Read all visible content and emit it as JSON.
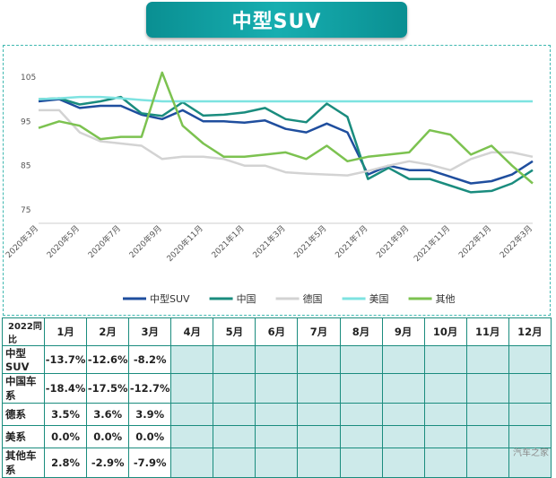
{
  "page": {
    "title": "中型SUV",
    "watermark": "汽车之家"
  },
  "chart_data": {
    "type": "line",
    "title": "中型SUV",
    "ylim": [
      72,
      108
    ],
    "yticks": [
      75,
      85,
      95,
      105
    ],
    "categories": [
      "2020年3月",
      "2020年4月",
      "2020年5月",
      "2020年6月",
      "2020年7月",
      "2020年8月",
      "2020年9月",
      "2020年10月",
      "2020年11月",
      "2020年12月",
      "2021年1月",
      "2021年2月",
      "2021年3月",
      "2021年4月",
      "2021年5月",
      "2021年6月",
      "2021年7月",
      "2021年8月",
      "2021年9月",
      "2021年10月",
      "2021年11月",
      "2021年12月",
      "2022年1月",
      "2022年2月",
      "2022年3月"
    ],
    "xtick_labels": [
      "2020年3月",
      "2020年5月",
      "2020年7月",
      "2020年9月",
      "2020年11月",
      "2021年1月",
      "2021年3月",
      "2021年5月",
      "2021年7月",
      "2021年9月",
      "2021年11月",
      "2022年1月",
      "2022年3月"
    ],
    "series": [
      {
        "name": "中型SUV",
        "color": "#1f4e9e",
        "values": [
          99.5,
          100,
          98,
          98.5,
          98.5,
          96.5,
          95.5,
          97.5,
          95,
          95,
          94.7,
          95.2,
          93.3,
          92.5,
          94.5,
          92.5,
          83,
          85,
          84,
          84,
          82.5,
          81,
          81.5,
          83,
          86
        ]
      },
      {
        "name": "中国",
        "color": "#1a8c7e",
        "values": [
          100,
          100.2,
          98.8,
          99.5,
          100.5,
          96.8,
          96.2,
          99.3,
          96.3,
          96.5,
          97,
          98,
          95.5,
          94.8,
          99,
          96,
          82,
          84.5,
          82,
          82,
          80.5,
          79,
          79.3,
          81,
          84
        ]
      },
      {
        "name": "德国",
        "color": "#d3d3d3",
        "values": [
          97.5,
          97.5,
          92.5,
          90.5,
          90,
          89.5,
          86.5,
          87,
          87,
          86.5,
          85,
          85,
          83.5,
          83.2,
          83,
          82.8,
          83.8,
          85,
          86,
          85.2,
          84,
          86.5,
          88,
          88,
          87
        ]
      },
      {
        "name": "美国",
        "color": "#7ee3e1",
        "values": [
          100,
          100.2,
          100.5,
          100.5,
          100.2,
          99.8,
          99.5,
          99.5,
          99.5,
          99.5,
          99.5,
          99.5,
          99.5,
          99.5,
          99.5,
          99.5,
          99.5,
          99.5,
          99.5,
          99.5,
          99.5,
          99.5,
          99.5,
          99.5,
          99.5
        ]
      },
      {
        "name": "其他",
        "color": "#7cc250",
        "values": [
          93.5,
          95,
          94,
          91,
          91.5,
          91.5,
          106,
          94,
          90,
          87,
          87,
          87.5,
          88,
          86.5,
          89.5,
          86,
          87,
          87.5,
          88,
          93,
          92,
          87.5,
          89.5,
          85,
          81
        ]
      }
    ]
  },
  "table": {
    "corner": "2022同比",
    "months": [
      "1月",
      "2月",
      "3月",
      "4月",
      "5月",
      "6月",
      "7月",
      "8月",
      "9月",
      "10月",
      "11月",
      "12月"
    ],
    "rows": [
      {
        "label": "中型SUV",
        "values": [
          "-13.7%",
          "-12.6%",
          "-8.2%",
          "",
          "",
          "",
          "",
          "",
          "",
          "",
          "",
          ""
        ]
      },
      {
        "label": "中国车系",
        "values": [
          "-18.4%",
          "-17.5%",
          "-12.7%",
          "",
          "",
          "",
          "",
          "",
          "",
          "",
          "",
          ""
        ]
      },
      {
        "label": "德系",
        "values": [
          "3.5%",
          "3.6%",
          "3.9%",
          "",
          "",
          "",
          "",
          "",
          "",
          "",
          "",
          ""
        ]
      },
      {
        "label": "美系",
        "values": [
          "0.0%",
          "0.0%",
          "0.0%",
          "",
          "",
          "",
          "",
          "",
          "",
          "",
          "",
          ""
        ]
      },
      {
        "label": "其他车系",
        "values": [
          "2.8%",
          "-2.9%",
          "-7.9%",
          "",
          "",
          "",
          "",
          "",
          "",
          "",
          "",
          ""
        ]
      }
    ]
  }
}
